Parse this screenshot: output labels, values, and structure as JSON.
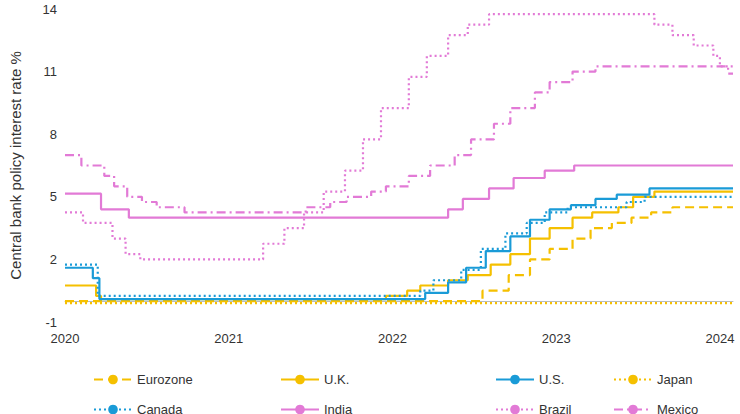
{
  "chart_data": {
    "type": "line",
    "y_label": "Central bank policy interest rate %",
    "xlim": [
      2020,
      2024.08
    ],
    "xticks": [
      2020,
      2021,
      2022,
      2023,
      2024
    ],
    "ylim": [
      -1,
      14
    ],
    "yticks": [
      -1,
      2,
      5,
      8,
      11,
      14
    ],
    "grid": false,
    "legend": "bottom",
    "stacked": false,
    "series": [
      {
        "name": "Eurozone",
        "color": "#f5c000",
        "line_style": "dashed",
        "x": [
          2020,
          2022.55,
          2022.71,
          2022.84,
          2022.96,
          2023.1,
          2023.21,
          2023.34,
          2023.46,
          2023.58,
          2023.71,
          2024.08
        ],
        "values": [
          0,
          0.5,
          1.25,
          2.0,
          2.5,
          3.0,
          3.5,
          3.75,
          4.0,
          4.25,
          4.5,
          4.5
        ]
      },
      {
        "name": "U.K.",
        "color": "#f5c000",
        "line_style": "solid",
        "x": [
          2020,
          2020.19,
          2020.22,
          2021.96,
          2022.09,
          2022.17,
          2022.34,
          2022.46,
          2022.6,
          2022.72,
          2022.84,
          2022.96,
          2023.1,
          2023.22,
          2023.38,
          2023.47,
          2023.6,
          2024.08
        ],
        "values": [
          0.75,
          0.25,
          0.1,
          0.25,
          0.5,
          0.75,
          1.0,
          1.25,
          1.75,
          2.25,
          3.0,
          3.5,
          4.0,
          4.25,
          4.5,
          5.0,
          5.25,
          5.25
        ]
      },
      {
        "name": "U.S.",
        "color": "#1a9bd7",
        "line_style": "solid",
        "x": [
          2020,
          2020.17,
          2020.21,
          2022.2,
          2022.34,
          2022.45,
          2022.57,
          2022.72,
          2022.84,
          2022.96,
          2023.09,
          2023.24,
          2023.37,
          2023.57,
          2024.08
        ],
        "values": [
          1.6,
          1.1,
          0.1,
          0.4,
          0.9,
          1.6,
          2.4,
          3.1,
          3.9,
          4.4,
          4.6,
          4.9,
          5.1,
          5.4,
          5.4
        ]
      },
      {
        "name": "Japan",
        "color": "#f5c000",
        "line_style": "dotted",
        "x": [
          2020,
          2024.08
        ],
        "values": [
          -0.1,
          -0.1
        ]
      },
      {
        "name": "Canada",
        "color": "#1a9bd7",
        "line_style": "dotted",
        "x": [
          2020,
          2020.2,
          2022.17,
          2022.25,
          2022.42,
          2022.54,
          2022.69,
          2022.82,
          2022.93,
          2023.07,
          2023.43,
          2023.54,
          2024.08
        ],
        "values": [
          1.75,
          0.25,
          0.5,
          1.0,
          1.5,
          2.5,
          3.25,
          3.75,
          4.25,
          4.5,
          4.75,
          5.0,
          5.0
        ]
      },
      {
        "name": "India",
        "color": "#e27ad6",
        "line_style": "solid",
        "x": [
          2020,
          2020.22,
          2020.39,
          2022.34,
          2022.43,
          2022.59,
          2022.74,
          2022.93,
          2023.11,
          2024.08
        ],
        "values": [
          5.15,
          4.4,
          4.0,
          4.4,
          4.9,
          5.4,
          5.9,
          6.25,
          6.5,
          6.5
        ]
      },
      {
        "name": "Brazil",
        "color": "#e27ad6",
        "line_style": "dotted",
        "x": [
          2020,
          2020.11,
          2020.29,
          2020.37,
          2020.46,
          2021.21,
          2021.34,
          2021.46,
          2021.58,
          2021.71,
          2021.82,
          2021.93,
          2022.1,
          2022.21,
          2022.34,
          2022.46,
          2022.59,
          2023.6,
          2023.71,
          2023.84,
          2023.96,
          2024.0,
          2024.08
        ],
        "values": [
          4.25,
          3.75,
          3.0,
          2.25,
          2.0,
          2.75,
          3.5,
          4.25,
          5.25,
          6.25,
          7.75,
          9.25,
          10.75,
          11.75,
          12.75,
          13.25,
          13.75,
          13.25,
          12.75,
          12.25,
          11.75,
          11.25,
          11.25
        ]
      },
      {
        "name": "Mexico",
        "color": "#e27ad6",
        "line_style": "dashdot",
        "x": [
          2020,
          2020.1,
          2020.24,
          2020.3,
          2020.38,
          2020.47,
          2020.56,
          2020.73,
          2021.47,
          2021.62,
          2021.72,
          2021.87,
          2021.96,
          2022.1,
          2022.23,
          2022.38,
          2022.48,
          2022.62,
          2022.72,
          2022.87,
          2022.96,
          2023.1,
          2023.24,
          2024.05,
          2024.08
        ],
        "values": [
          7.0,
          6.5,
          6.0,
          5.5,
          5.0,
          4.75,
          4.5,
          4.25,
          4.5,
          4.75,
          5.0,
          5.25,
          5.5,
          6.0,
          6.5,
          7.0,
          7.75,
          8.5,
          9.25,
          10.0,
          10.5,
          11.0,
          11.25,
          10.9,
          10.9
        ]
      }
    ]
  }
}
